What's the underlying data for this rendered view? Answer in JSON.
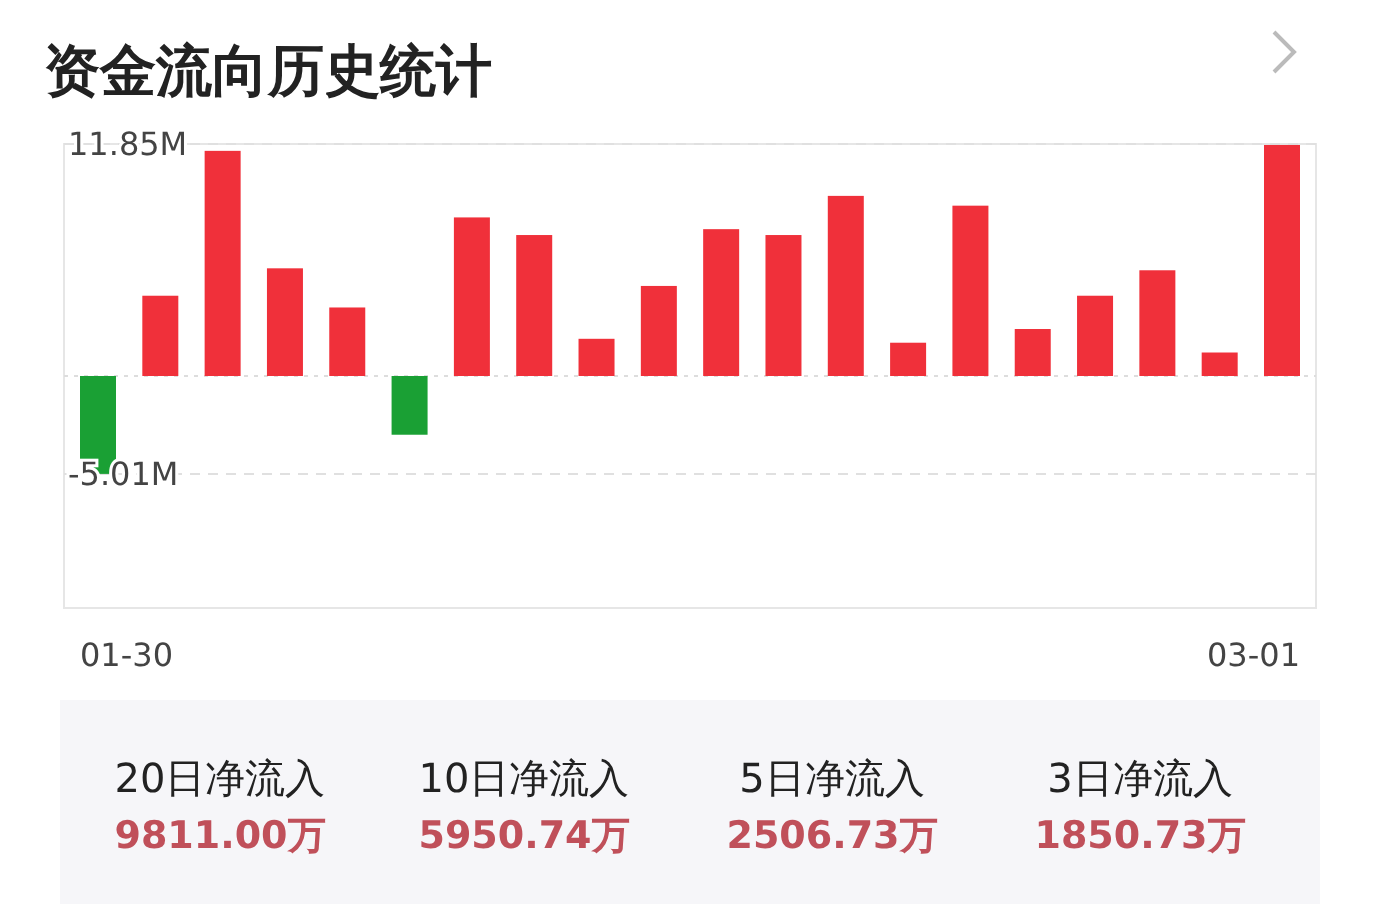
{
  "chart_data": [
    {
      "type": "bar",
      "title": "资金流向历史统计",
      "categories": [
        "01-30",
        null,
        null,
        null,
        null,
        null,
        null,
        null,
        null,
        null,
        null,
        null,
        null,
        null,
        null,
        null,
        null,
        null,
        null,
        "03-01"
      ],
      "values": [
        -5.0,
        4.1,
        11.5,
        5.5,
        3.5,
        -3.0,
        8.1,
        7.2,
        1.9,
        4.6,
        7.5,
        7.2,
        9.2,
        1.7,
        8.7,
        2.4,
        4.1,
        5.4,
        1.2,
        11.8
      ],
      "colors": [
        "#1aa034",
        "#f0303a",
        "#f0303a",
        "#f0303a",
        "#f0303a",
        "#1aa034",
        "#f0303a",
        "#f0303a",
        "#f0303a",
        "#f0303a",
        "#f0303a",
        "#f0303a",
        "#f0303a",
        "#f0303a",
        "#f0303a",
        "#f0303a",
        "#f0303a",
        "#f0303a",
        "#f0303a",
        "#f0303a"
      ],
      "ylim": [
        -11.85,
        11.85
      ],
      "yticks": [
        {
          "value": 11.85,
          "label": "11.85M"
        },
        {
          "value": -5.01,
          "label": "-5.01M"
        }
      ],
      "grid": "y",
      "ref_lines": [
        {
          "axis": "y",
          "value": 0,
          "line_style": "dotted",
          "color": "#dddddd"
        }
      ]
    },
    {
      "type": "other",
      "annotations": [
        "20日净流入",
        "9811.00万",
        "10日净流入",
        "5950.74万",
        "5日净流入",
        "2506.73万",
        "3日净流入",
        "1850.73万"
      ]
    }
  ]
}
